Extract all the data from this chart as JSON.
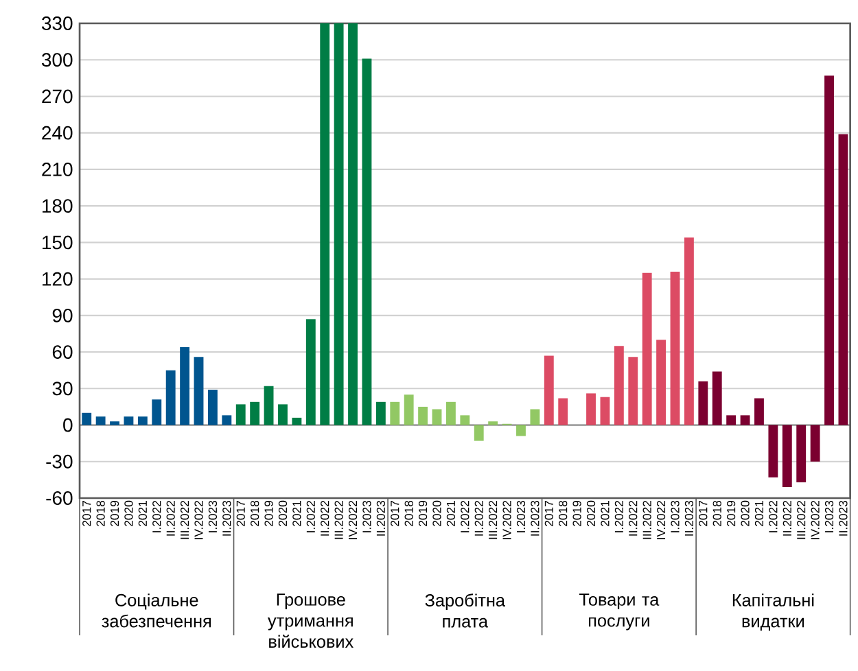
{
  "chart_data": {
    "type": "bar",
    "categories": [
      "2017",
      "2018",
      "2019",
      "2020",
      "2021",
      "I.2022",
      "II.2022",
      "III.2022",
      "IV.2022",
      "I.2023",
      "II.2023",
      "2017",
      "2018",
      "2019",
      "2020",
      "2021",
      "I.2022",
      "II.2022",
      "III.2022",
      "IV.2022",
      "I.2023",
      "II.2023",
      "2017",
      "2018",
      "2019",
      "2020",
      "2021",
      "I.2022",
      "II.2022",
      "III.2022",
      "IV.2022",
      "I.2023",
      "II.2023",
      "2017",
      "2018",
      "2019",
      "2020",
      "2021",
      "I.2022",
      "II.2022",
      "III.2022",
      "IV.2022",
      "I.2023",
      "II.2023",
      "2017",
      "2018",
      "2019",
      "2020",
      "2021",
      "I.2022",
      "II.2022",
      "III.2022",
      "IV.2022",
      "I.2023",
      "II.2023"
    ],
    "values": [
      10,
      7,
      3,
      7,
      7,
      21,
      45,
      64,
      56,
      29,
      8,
      17,
      19,
      32,
      17,
      6,
      87,
      330,
      330,
      330,
      301,
      19,
      19,
      25,
      15,
      13,
      19,
      8,
      -13,
      3,
      1,
      -9,
      13,
      57,
      22,
      null,
      26,
      23,
      65,
      56,
      125,
      70,
      126,
      154,
      36,
      44,
      8,
      8,
      22,
      -43,
      -51,
      -47,
      -30,
      287,
      239
    ],
    "colors": [
      "#00558f",
      "#00558f",
      "#00558f",
      "#00558f",
      "#00558f",
      "#00558f",
      "#00558f",
      "#00558f",
      "#00558f",
      "#00558f",
      "#00558f",
      "#007d45",
      "#007d45",
      "#007d45",
      "#007d45",
      "#007d45",
      "#007d45",
      "#007d45",
      "#007d45",
      "#007d45",
      "#007d45",
      "#007d45",
      "#92c864",
      "#92c864",
      "#92c864",
      "#92c864",
      "#92c864",
      "#92c864",
      "#92c864",
      "#92c864",
      "#92c864",
      "#92c864",
      "#92c864",
      "#dc4b64",
      "#dc4b64",
      "#dc4b64",
      "#dc4b64",
      "#dc4b64",
      "#dc4b64",
      "#dc4b64",
      "#dc4b64",
      "#dc4b64",
      "#dc4b64",
      "#dc4b64",
      "#7b0030",
      "#7b0030",
      "#7b0030",
      "#7b0030",
      "#7b0030",
      "#7b0030",
      "#7b0030",
      "#7b0030",
      "#7b0030",
      "#7b0030",
      "#7b0030"
    ],
    "annotations": [
      "Соціальне забезпечення",
      "Грошове утримання військових",
      "Заробітна плата",
      "Товари та послуги",
      "Капітальні видатки"
    ],
    "ylim": [
      -60,
      330
    ],
    "yticks": [
      -60,
      -30,
      0,
      30,
      60,
      90,
      120,
      150,
      180,
      210,
      240,
      270,
      300,
      330
    ],
    "grid": "y"
  }
}
